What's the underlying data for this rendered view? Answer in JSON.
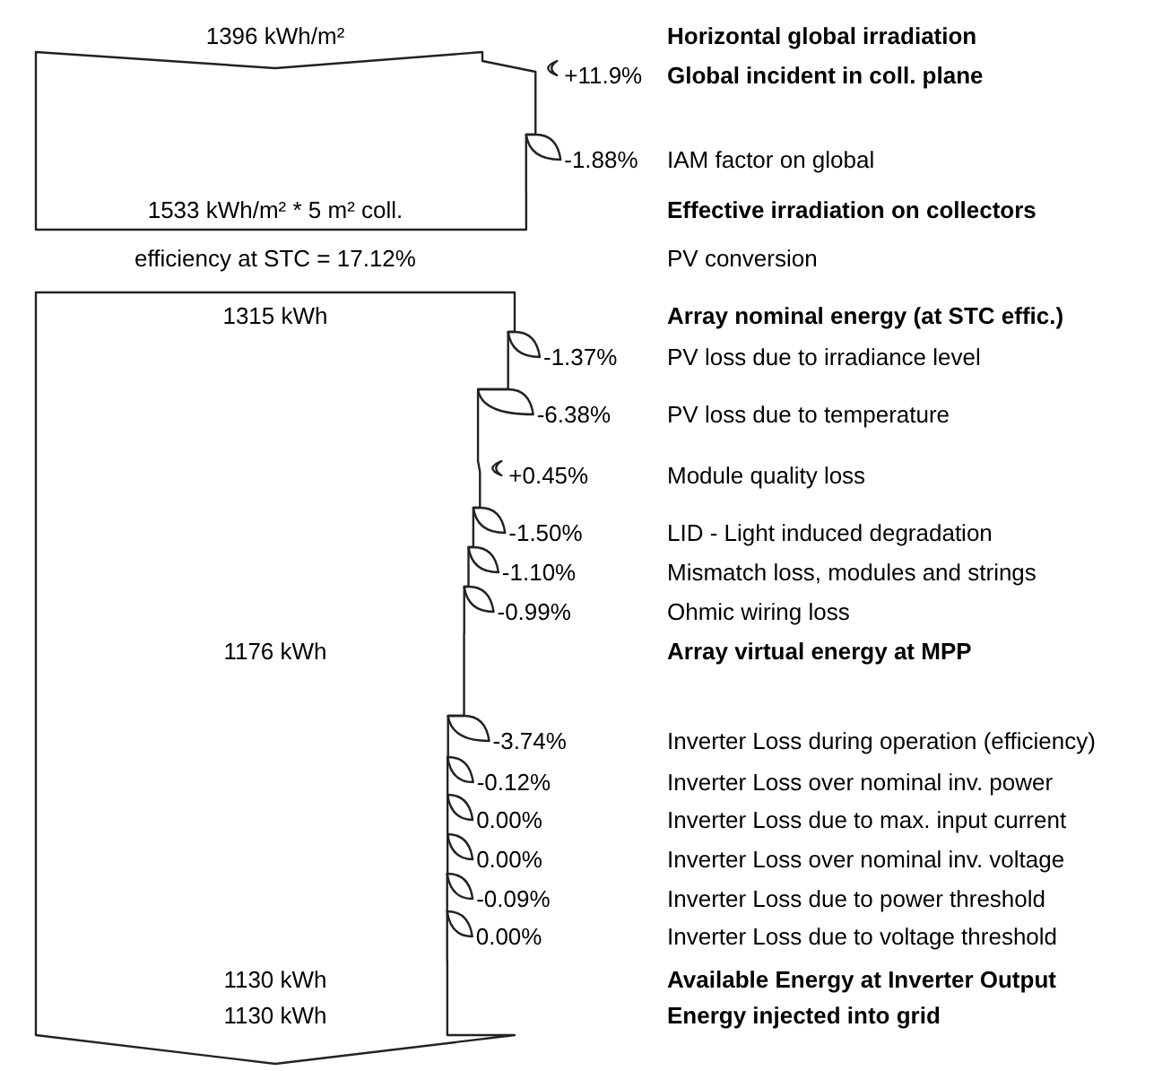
{
  "chart_data": {
    "type": "other",
    "categories": [
      "Horizontal global irradiation",
      "Global incident in coll. plane",
      "IAM factor on global",
      "Effective irradiation on collectors",
      "PV conversion",
      "Array nominal energy (at STC effic.)",
      "PV loss due to irradiance level",
      "PV loss due to temperature",
      "Module quality loss",
      "LID - Light induced degradation",
      "Mismatch loss, modules and strings",
      "Ohmic wiring loss",
      "Array virtual energy at MPP",
      "Inverter Loss during operation (efficiency)",
      "Inverter Loss over nominal inv. power",
      "Inverter Loss due to max. input current",
      "Inverter Loss over nominal inv. voltage",
      "Inverter Loss due to power threshold",
      "Inverter Loss due to voltage threshold",
      "Available Energy at Inverter Output",
      "Energy injected into grid"
    ],
    "values": [
      1396,
      11.9,
      -1.88,
      1533,
      17.12,
      1315,
      -1.37,
      -6.38,
      0.45,
      -1.5,
      -1.1,
      -0.99,
      1176,
      -3.74,
      -0.12,
      0,
      0,
      -0.09,
      0,
      1130,
      1130
    ],
    "value_labels": [
      "1396 kWh/m²",
      "+11.9%",
      "-1.88%",
      "1533 kWh/m² * 5 m² coll.",
      "efficiency at STC = 17.12%",
      "1315 kWh",
      "-1.37%",
      "-6.38%",
      "+0.45%",
      "-1.50%",
      "-1.10%",
      "-0.99%",
      "1176 kWh",
      "-3.74%",
      "-0.12%",
      "0.00%",
      "0.00%",
      "-0.09%",
      "0.00%",
      "1130 kWh",
      "1130 kWh"
    ]
  }
}
